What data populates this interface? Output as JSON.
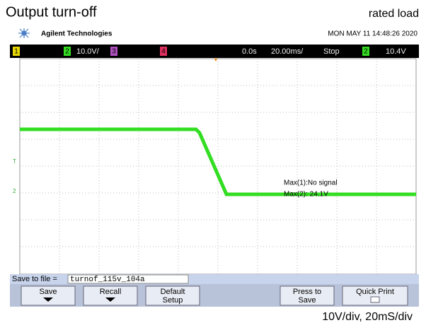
{
  "header": {
    "title": "Output turn-off",
    "note": "rated load",
    "brand": "Agilent Technologies",
    "timestamp": "MON MAY 11 14:48:26 2020"
  },
  "status": {
    "ch1": "1",
    "ch2": "2",
    "ch2_scale": "10.0V/",
    "ch3": "3",
    "ch4": "4",
    "delay": "0.0s",
    "timebase": "20.00ms/",
    "run_state": "Stop",
    "trig_source": "2",
    "trig_level": "10.4V"
  },
  "markers": {
    "trigger": "T",
    "ch2": "2"
  },
  "measurements": [
    "Max(1):No signal",
    "Max(2): 24.1V"
  ],
  "file_bar": {
    "label": "Save to file =",
    "filename": "turnof_115v_104a"
  },
  "softkeys": [
    "Save",
    "Recall",
    "Default Setup",
    "Press to Save",
    "Quick Print"
  ],
  "caption": "10V/div, 20mS/div"
}
